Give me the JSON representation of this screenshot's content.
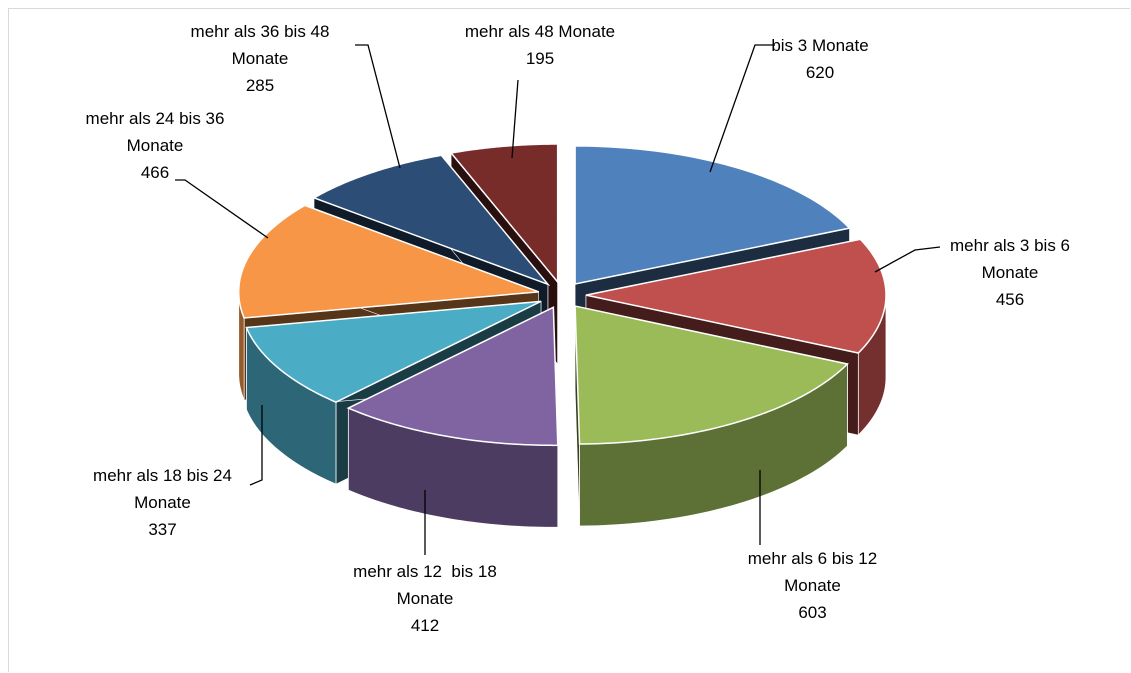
{
  "chart_data": {
    "type": "pie",
    "categories": [
      "bis 3 Monate",
      "mehr als 3 bis 6 Monate",
      "mehr als 6 bis 12 Monate",
      "mehr als 12  bis 18 Monate",
      "mehr als 18 bis 24 Monate",
      "mehr als 24 bis 36 Monate",
      "mehr als 36 bis 48 Monate",
      "mehr als 48 Monate"
    ],
    "values": [
      620,
      456,
      603,
      412,
      337,
      466,
      285,
      195
    ],
    "colors": [
      "#4f81bd",
      "#c0504d",
      "#9bbb59",
      "#8064a2",
      "#4bacc6",
      "#f79646",
      "#2c4d75",
      "#772c2a"
    ]
  }
}
